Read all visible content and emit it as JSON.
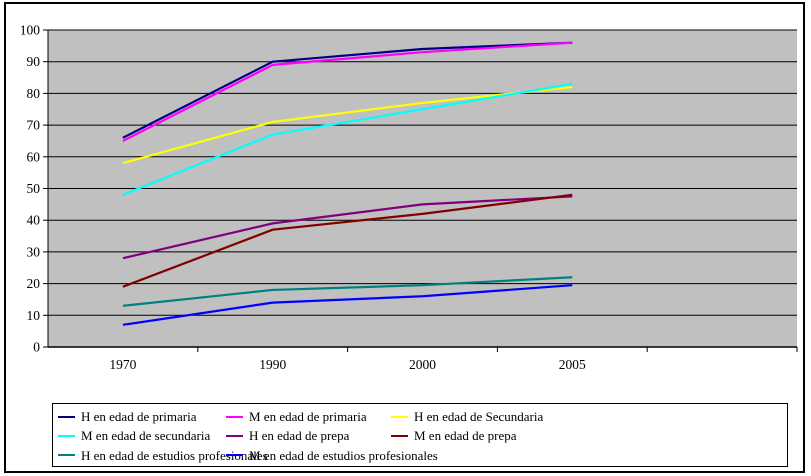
{
  "chart": {
    "background_color": "#FFFFFF",
    "plot_background_color": "#C0C0C0",
    "gridline_color": "#000000",
    "axis_color": "#000000",
    "outer_border_color": "#000000",
    "legend_border_color": "#000000",
    "legend_background_color": "#FFFFFF"
  },
  "chart_data": {
    "type": "line",
    "title": "",
    "xlabel": "",
    "ylabel": "",
    "categories": [
      "1970",
      "1990",
      "2000",
      "2005"
    ],
    "empty_trailing_category_slots": 1,
    "ylim": [
      0,
      100
    ],
    "yticks": [
      0,
      10,
      20,
      30,
      40,
      50,
      60,
      70,
      80,
      90,
      100
    ],
    "grid": true,
    "legend_position": "bottom",
    "series": [
      {
        "name": "H en edad de primaria",
        "color": "#000080",
        "values": [
          66,
          90,
          94,
          96
        ]
      },
      {
        "name": "M en edad de primaria",
        "color": "#FF00FF",
        "values": [
          65,
          89,
          93,
          96
        ]
      },
      {
        "name": "H en edad de Secundaria",
        "color": "#FFFF00",
        "values": [
          58,
          71,
          77,
          82
        ]
      },
      {
        "name": "M en edad de secundaria",
        "color": "#00FFFF",
        "values": [
          48,
          67,
          75,
          83
        ]
      },
      {
        "name": "H en edad de prepa",
        "color": "#800080",
        "values": [
          28,
          39,
          45,
          47.5
        ]
      },
      {
        "name": "M en edad de prepa",
        "color": "#800000",
        "values": [
          19,
          37,
          42,
          48
        ]
      },
      {
        "name": "H en edad de estudios profesionales",
        "color": "#008080",
        "values": [
          13,
          18,
          19.5,
          22
        ]
      },
      {
        "name": "M en edad de estudios profesionales",
        "color": "#0000FF",
        "values": [
          7,
          14,
          16,
          19.5
        ]
      }
    ]
  }
}
